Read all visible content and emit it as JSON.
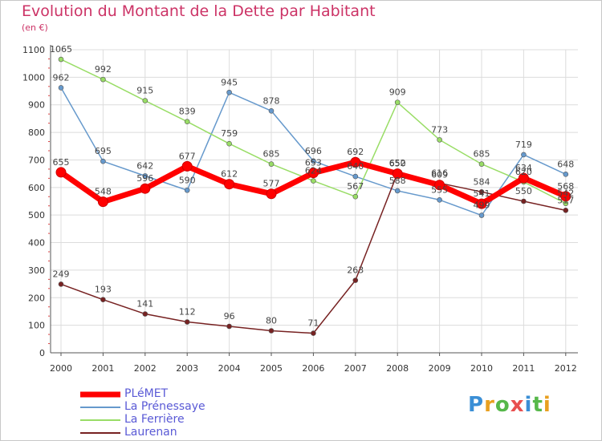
{
  "title": "Evolution du Montant de la Dette par Habitant",
  "subtitle": "(en €)",
  "brand": {
    "text": "Proxiti",
    "colors": [
      "#3b8fd6",
      "#e8a020",
      "#56b84a",
      "#e85050",
      "#3b8fd6",
      "#56b84a",
      "#e8a020"
    ]
  },
  "chart_data": {
    "type": "line",
    "x": [
      "2000",
      "2001",
      "2002",
      "2003",
      "2004",
      "2005",
      "2006",
      "2007",
      "2008",
      "2009",
      "2010",
      "2011",
      "2012"
    ],
    "ylim": [
      0,
      1100
    ],
    "yticks": [
      0,
      100,
      200,
      300,
      400,
      500,
      600,
      700,
      800,
      900,
      1000,
      1100
    ],
    "grid": true,
    "legend_position": "bottom-left",
    "series": [
      {
        "name": "PLéMET",
        "color": "#ff0000",
        "values": [
          655,
          548,
          596,
          677,
          612,
          577,
          653,
          692,
          650,
          609,
          541,
          634,
          568
        ],
        "labels": [
          "655",
          "548",
          "596",
          "677",
          "612",
          "577",
          "653",
          "692",
          "650",
          "609",
          "541",
          "634",
          "568"
        ]
      },
      {
        "name": "La Prénessaye",
        "color": "#6699cc",
        "values": [
          962,
          695,
          642,
          590,
          945,
          878,
          696,
          640,
          588,
          555,
          499,
          719,
          648
        ],
        "labels": [
          "962",
          "695",
          "642",
          "590",
          "945",
          "878",
          "696",
          "640",
          "588",
          "555",
          "499",
          "719",
          "648"
        ]
      },
      {
        "name": "La Ferrière",
        "color": "#99dd66",
        "values": [
          1065,
          992,
          915,
          839,
          759,
          685,
          624,
          567,
          909,
          773,
          685,
          620,
          542
        ],
        "labels": [
          "1065",
          "992",
          "915",
          "839",
          "759",
          "685",
          "624",
          "567",
          "909",
          "773",
          "685",
          "620",
          "542"
        ]
      },
      {
        "name": "Laurenan",
        "color": "#772222",
        "values": [
          249,
          193,
          141,
          112,
          96,
          80,
          71,
          263,
          652,
          616,
          584,
          550,
          517
        ],
        "labels": [
          "249",
          "193",
          "141",
          "112",
          "96",
          "80",
          "71",
          "263",
          "652",
          "616",
          "584",
          "550",
          "517"
        ]
      }
    ]
  }
}
